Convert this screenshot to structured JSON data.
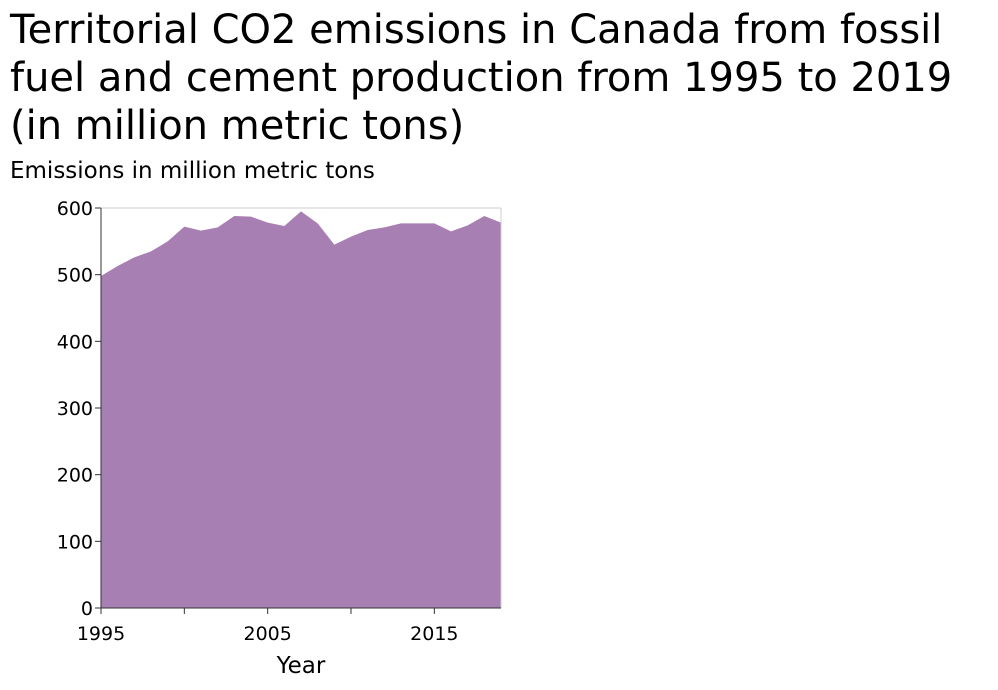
{
  "chart_data": {
    "type": "area",
    "title": "Territorial CO2 emissions in Canada from fossil fuel and cement production from 1995 to 2019 (in million metric tons)",
    "ylabel": "Emissions in million metric tons",
    "xlabel": "Year",
    "x": [
      1995,
      1996,
      1997,
      1998,
      1999,
      2000,
      2001,
      2002,
      2003,
      2004,
      2005,
      2006,
      2007,
      2008,
      2009,
      2010,
      2011,
      2012,
      2013,
      2014,
      2015,
      2016,
      2017,
      2018,
      2019
    ],
    "series": [
      {
        "values": [
          498,
          513,
          526,
          535,
          550,
          572,
          566,
          571,
          588,
          587,
          578,
          573,
          595,
          577,
          545,
          557,
          567,
          571,
          577,
          577,
          577,
          565,
          574,
          588,
          578
        ]
      }
    ],
    "xlim": [
      1995,
      2019
    ],
    "ylim": [
      0,
      600
    ],
    "x_ticks": [
      1995,
      2005,
      2015
    ],
    "y_ticks": [
      0,
      100,
      200,
      300,
      400,
      500,
      600
    ],
    "grid": false,
    "fill_color": "#a87fb3"
  }
}
